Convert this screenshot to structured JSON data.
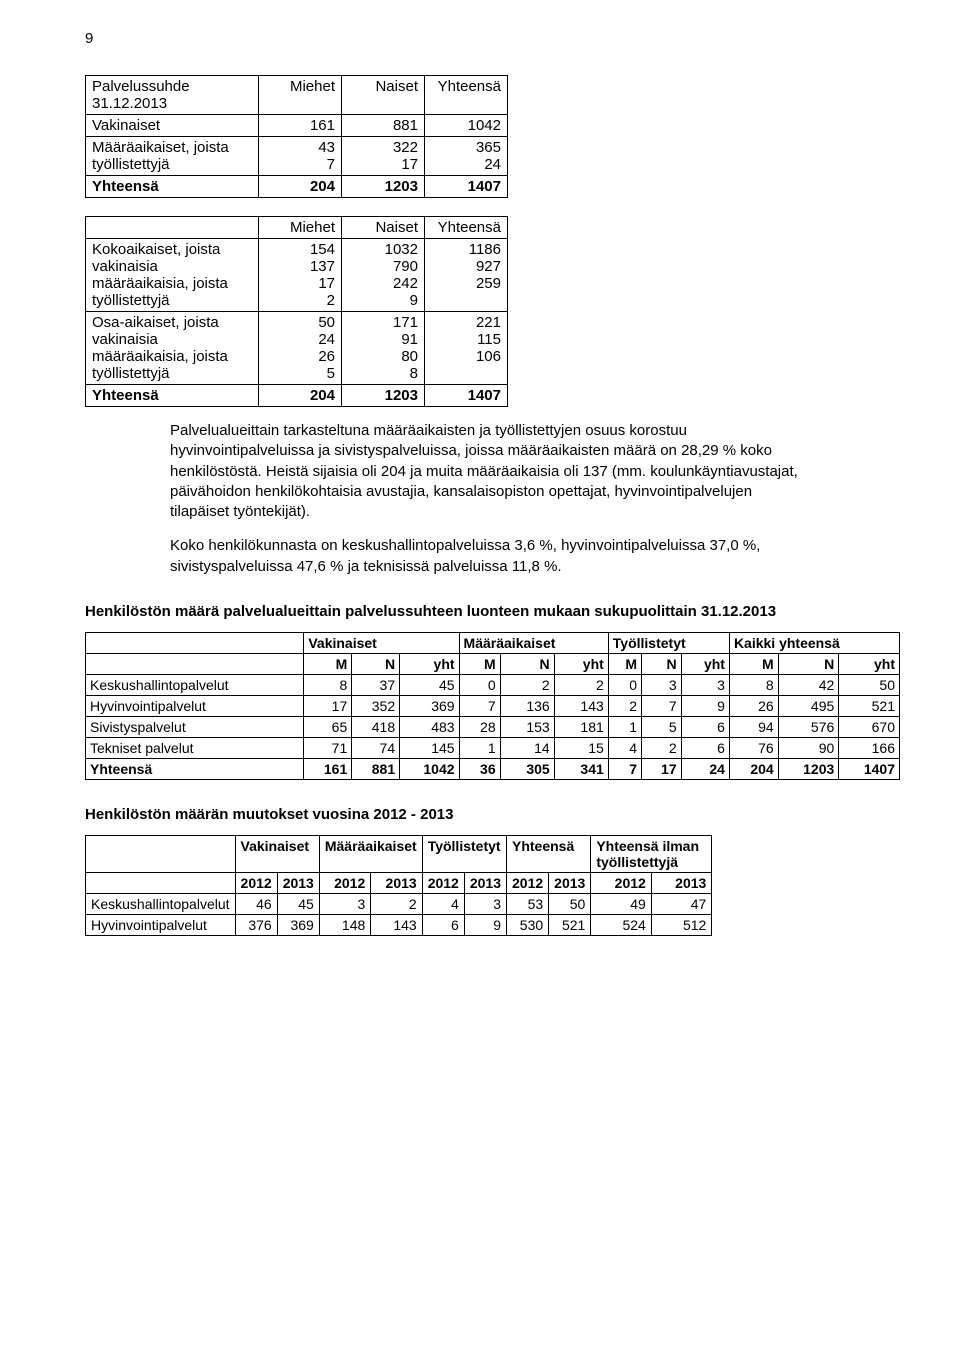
{
  "page_number": "9",
  "table1": {
    "corner": "Palvelussuhde 31.12.2013",
    "headers": [
      "Miehet",
      "Naiset",
      "Yhteensä"
    ],
    "rows": [
      {
        "label": "Vakinaiset",
        "m": "161",
        "n": "881",
        "y": "1042"
      },
      {
        "label": "Määräaikaiset, joista työllistettyjä",
        "m": "43\n7",
        "n": "322\n17",
        "y": "365\n24"
      },
      {
        "label": "Yhteensä",
        "m": "204",
        "n": "1203",
        "y": "1407",
        "bold": true
      }
    ]
  },
  "table2": {
    "headers": [
      "",
      "Miehet",
      "Naiset",
      "Yhteensä"
    ],
    "rows": [
      {
        "label": "Kokoaikaiset, joista\nvakinaisia\nmääräaikaisia, joista\ntyöllistettyjä",
        "m": "154\n137\n17\n2",
        "n": "1032\n790\n242\n9",
        "y": "1186\n927\n259"
      },
      {
        "label": "Osa-aikaiset, joista\nvakinaisia\nmääräaikaisia, joista\ntyöllistettyjä",
        "m": "50\n24\n26\n5",
        "n": "171\n91\n80\n8",
        "y": "221\n115\n106"
      },
      {
        "label": "Yhteensä",
        "m": "204",
        "n": "1203",
        "y": "1407",
        "bold": true
      }
    ]
  },
  "para1": "Palvelualueittain tarkasteltuna määräaikaisten ja työllistettyjen osuus korostuu hyvinvointipalveluissa ja sivistyspalveluissa, joissa määräaikaisten määrä on 28,29 % koko henkilöstöstä. Heistä sijaisia oli 204 ja muita määräaikaisia oli 137 (mm. koulunkäyntiavustajat, päivähoidon henkilökohtaisia avustajia, kansalaisopiston opettajat, hyvinvointipalvelujen tilapäiset työntekijät).",
  "para2": "Koko henkilökunnasta on keskushallintopalveluissa 3,6 %, hyvinvointipalveluissa 37,0 %, sivistyspalveluissa 47,6 % ja teknisissä palveluissa 11,8 %.",
  "section3_head": "Henkilöstön määrä palvelualueittain palvelussuhteen luonteen mukaan sukupuolittain 31.12.2013",
  "table3": {
    "group_headers": [
      "",
      "Vakinaiset",
      "Määräaikaiset",
      "Työllistetyt",
      "Kaikki yhteensä"
    ],
    "sub_headers": [
      "",
      "M",
      "N",
      "yht",
      "M",
      "N",
      "yht",
      "M",
      "N",
      "yht",
      "M",
      "N",
      "yht"
    ],
    "rows": [
      [
        "Keskushallintopalvelut",
        "8",
        "37",
        "45",
        "0",
        "2",
        "2",
        "0",
        "3",
        "3",
        "8",
        "42",
        "50"
      ],
      [
        "Hyvinvointipalvelut",
        "17",
        "352",
        "369",
        "7",
        "136",
        "143",
        "2",
        "7",
        "9",
        "26",
        "495",
        "521"
      ],
      [
        "Sivistyspalvelut",
        "65",
        "418",
        "483",
        "28",
        "153",
        "181",
        "1",
        "5",
        "6",
        "94",
        "576",
        "670"
      ],
      [
        "Tekniset palvelut",
        "71",
        "74",
        "145",
        "1",
        "14",
        "15",
        "4",
        "2",
        "6",
        "76",
        "90",
        "166"
      ],
      [
        "Yhteensä",
        "161",
        "881",
        "1042",
        "36",
        "305",
        "341",
        "7",
        "17",
        "24",
        "204",
        "1203",
        "1407"
      ]
    ],
    "total_row_index": 4
  },
  "section4_head": "Henkilöstön määrän muutokset vuosina 2012 - 2013",
  "table4": {
    "group_headers": [
      "",
      "Vakinaiset",
      "Määräaikaiset",
      "Työllistetyt",
      "Yhteensä",
      "Yhteensä ilman työllistettyjä"
    ],
    "sub_headers": [
      "",
      "2012",
      "2013",
      "2012",
      "2013",
      "2012",
      "2013",
      "2012",
      "2013",
      "2012",
      "2013"
    ],
    "rows": [
      [
        "Keskushallintopalvelut",
        "46",
        "45",
        "3",
        "2",
        "4",
        "3",
        "53",
        "50",
        "49",
        "47"
      ],
      [
        "Hyvinvointipalvelut",
        "376",
        "369",
        "148",
        "143",
        "6",
        "9",
        "530",
        "521",
        "524",
        "512"
      ]
    ]
  }
}
